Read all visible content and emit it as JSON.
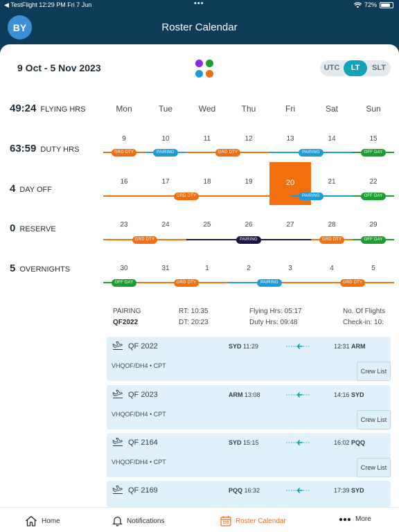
{
  "status_bar": {
    "left": "◀ TestFlight  12:29 PM  Fri 7 Jun",
    "center": "•••",
    "battery": "72%"
  },
  "header": {
    "avatar": "BY",
    "title": "Roster Calendar"
  },
  "date_range": "9 Oct - 5 Nov 2023",
  "timezone": {
    "options": [
      "UTC",
      "LT",
      "SLT"
    ],
    "selected": "LT"
  },
  "app_dot_colors": [
    "#8a2be2",
    "#1b9e2f",
    "#1e9bd7",
    "#f26f0f"
  ],
  "stats": [
    {
      "value": "49:24",
      "label": "FLYING HRS"
    },
    {
      "value": "63:59",
      "label": "DUTY HRS"
    },
    {
      "value": "4",
      "label": "DAY OFF"
    },
    {
      "value": "0",
      "label": "RESERVE"
    },
    {
      "value": "5",
      "label": "OVERNIGHTS"
    }
  ],
  "weekdays": [
    "Mon",
    "Tue",
    "Wed",
    "Thu",
    "Fri",
    "Sat",
    "Sun"
  ],
  "colors": {
    "grd_dty": "#f26f0f",
    "pairing": "#1e9bd7",
    "off_day": "#1b9e2f",
    "pairing_dark": "#1c1544",
    "today": "#f26f0f",
    "accent": "#13a2b8"
  },
  "weeks": [
    {
      "days": [
        "9",
        "10",
        "11",
        "12",
        "13",
        "14",
        "15"
      ],
      "segments": [
        {
          "from": 0,
          "to": 1,
          "type": "grd_dty"
        },
        {
          "from": 1,
          "to": 2,
          "type": "pairing"
        },
        {
          "from": 2,
          "to": 4,
          "type": "grd_dty"
        },
        {
          "from": 4,
          "to": 6,
          "type": "pairing"
        },
        {
          "from": 6,
          "to": 7,
          "type": "off_day"
        }
      ],
      "pills": [
        {
          "col": 0,
          "text": "GRD DTY",
          "type": "grd_dty"
        },
        {
          "col": 1,
          "text": "PAIRING",
          "type": "pairing"
        },
        {
          "col": 2.5,
          "text": "GRD DTY",
          "type": "grd_dty"
        },
        {
          "col": 4.5,
          "text": "PAIRING",
          "type": "pairing"
        },
        {
          "col": 6,
          "text": "OFF DAY",
          "type": "off_day"
        }
      ]
    },
    {
      "days": [
        "16",
        "17",
        "18",
        "19",
        "20",
        "21",
        "22"
      ],
      "segments": [
        {
          "from": 0,
          "to": 4.5,
          "type": "grd_dty"
        },
        {
          "from": 4.5,
          "to": 6,
          "type": "pairing"
        },
        {
          "from": 6,
          "to": 7,
          "type": "off_day"
        }
      ],
      "pills": [
        {
          "col": 1.5,
          "text": "GRD DTY",
          "type": "grd_dty"
        },
        {
          "col": 4.5,
          "text": "PAIRING",
          "type": "pairing"
        },
        {
          "col": 6,
          "text": "OFF DAY",
          "type": "off_day"
        }
      ]
    },
    {
      "days": [
        "23",
        "24",
        "25",
        "26",
        "27",
        "28",
        "29"
      ],
      "segments": [
        {
          "from": 0,
          "to": 2,
          "type": "grd_dty"
        },
        {
          "from": 2,
          "to": 5,
          "type": "pairing_dark"
        },
        {
          "from": 5,
          "to": 6,
          "type": "grd_dty"
        },
        {
          "from": 6,
          "to": 7,
          "type": "off_day"
        }
      ],
      "pills": [
        {
          "col": 0.5,
          "text": "GRD DTY",
          "type": "grd_dty"
        },
        {
          "col": 3,
          "text": "PAIRING",
          "type": "pairing_dark"
        },
        {
          "col": 5,
          "text": "GRD DTY",
          "type": "grd_dty"
        },
        {
          "col": 6,
          "text": "OFF DAY",
          "type": "off_day"
        }
      ]
    },
    {
      "days": [
        "30",
        "31",
        "1",
        "2",
        "3",
        "4",
        "5"
      ],
      "segments": [
        {
          "from": 0,
          "to": 0.8,
          "type": "off_day"
        },
        {
          "from": 0.8,
          "to": 3,
          "type": "grd_dty"
        },
        {
          "from": 3,
          "to": 4,
          "type": "pairing"
        },
        {
          "from": 4,
          "to": 7,
          "type": "grd_dty"
        }
      ],
      "pills": [
        {
          "col": 0,
          "text": "OFF DAY",
          "type": "off_day"
        },
        {
          "col": 1.5,
          "text": "GRD DTY",
          "type": "grd_dty"
        },
        {
          "col": 3.5,
          "text": "PAIRING",
          "type": "pairing"
        },
        {
          "col": 5.5,
          "text": "GRD DTY",
          "type": "grd_dty"
        }
      ]
    }
  ],
  "selected_day": "20",
  "pairing_info": {
    "col1": [
      "PAIRING",
      "QF2022"
    ],
    "col2": [
      "RT: 10:35",
      "DT: 20:23"
    ],
    "col3": [
      "Flying Hrs: 05:17",
      "Duty Hrs: 09:48"
    ],
    "col4": [
      "No. Of Flights",
      "Check-in: 10:"
    ]
  },
  "flights": [
    {
      "number": "QF 2022",
      "dep_code": "SYD",
      "dep_time": "11:29",
      "arr_time": "12:31",
      "arr_code": "ARM",
      "registration": "VHQOF/DH4 • CPT",
      "crew_label": "Crew List"
    },
    {
      "number": "QF 2023",
      "dep_code": "ARM",
      "dep_time": "13:08",
      "arr_time": "14:16",
      "arr_code": "SYD",
      "registration": "VHQOF/DH4 • CPT",
      "crew_label": "Crew List"
    },
    {
      "number": "QF 2164",
      "dep_code": "SYD",
      "dep_time": "15:15",
      "arr_time": "16:02",
      "arr_code": "PQQ",
      "registration": "VHQOF/DH4 • CPT",
      "crew_label": "Crew List"
    },
    {
      "number": "QF 2169",
      "dep_code": "PQQ",
      "dep_time": "16:32",
      "arr_time": "17:39",
      "arr_code": "SYD",
      "registration": "",
      "crew_label": ""
    }
  ],
  "tabs": [
    {
      "label": "Home",
      "icon": "home-icon",
      "active": false
    },
    {
      "label": "Notifications",
      "icon": "bell-icon",
      "active": false
    },
    {
      "label": "Roster Calendar",
      "icon": "calendar-icon",
      "active": true
    },
    {
      "label": "More",
      "icon": "more-icon",
      "active": false
    }
  ]
}
